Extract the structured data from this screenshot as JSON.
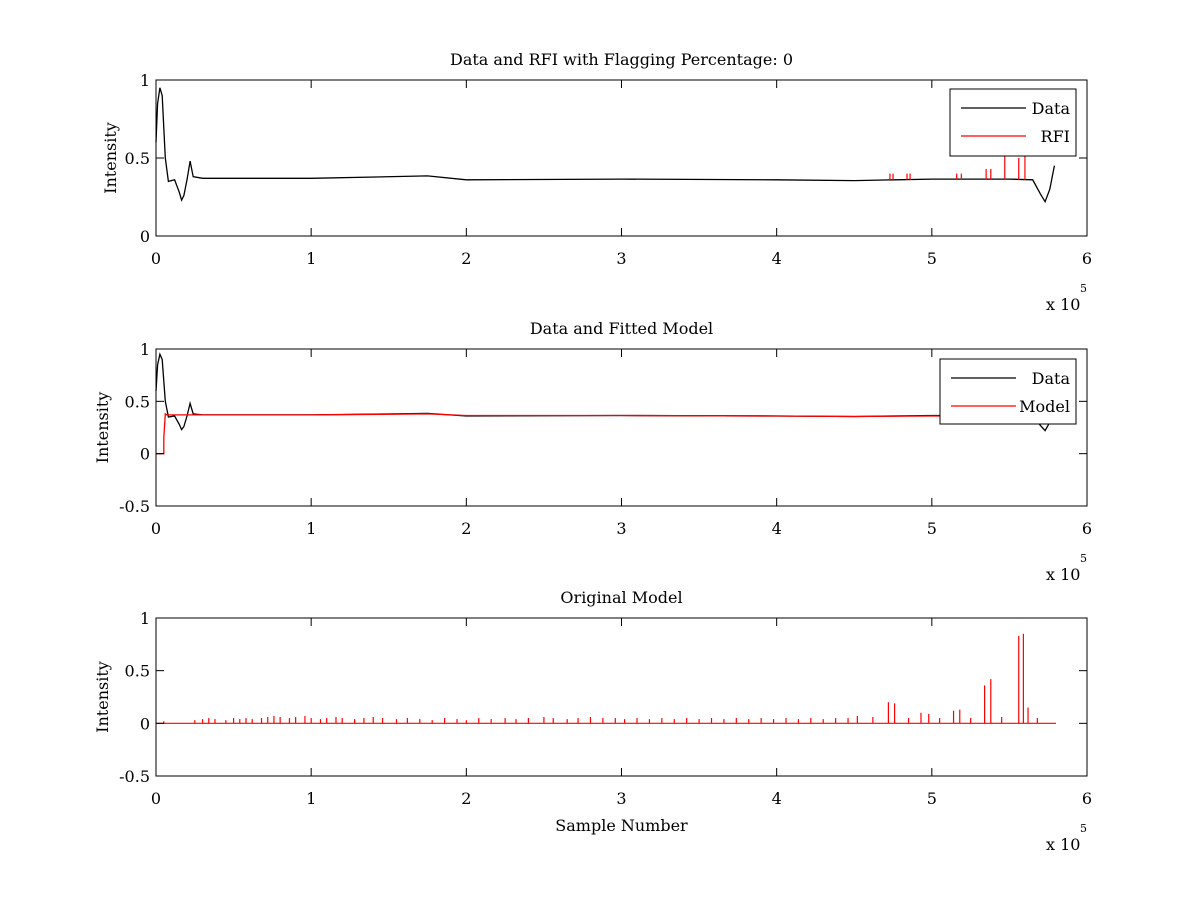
{
  "chart_data": [
    {
      "type": "line",
      "title": "Data and RFI with Flagging Percentage: 0",
      "xlabel": "",
      "ylabel": "Intensity",
      "xlim": [
        0,
        600000
      ],
      "ylim": [
        0,
        1
      ],
      "x_ticks": [
        0,
        100000,
        200000,
        300000,
        400000,
        500000,
        600000
      ],
      "x_tick_labels": [
        "0",
        "1",
        "2",
        "3",
        "4",
        "5",
        "6"
      ],
      "y_ticks": [
        0,
        0.5,
        1
      ],
      "y_tick_labels": [
        "0",
        "0.5",
        "1"
      ],
      "x_multiplier": {
        "base": "x 10",
        "exp": "5"
      },
      "grid": false,
      "legend_position": "top-right",
      "legend": [
        "Data",
        "RFI"
      ],
      "series": [
        {
          "name": "Data",
          "color": "#000000",
          "x": [
            0,
            1000,
            2500,
            4000,
            6000,
            8000,
            12000,
            15000,
            16500,
            18000,
            20000,
            22000,
            24000,
            30000,
            100000,
            175000,
            200000,
            300000,
            400000,
            450000,
            500000,
            550000,
            565000,
            570000,
            573000,
            576000,
            579000
          ],
          "values": [
            0.6,
            0.85,
            0.95,
            0.9,
            0.5,
            0.35,
            0.36,
            0.28,
            0.23,
            0.26,
            0.36,
            0.48,
            0.38,
            0.37,
            0.37,
            0.385,
            0.36,
            0.365,
            0.36,
            0.355,
            0.365,
            0.365,
            0.36,
            0.27,
            0.22,
            0.3,
            0.45
          ]
        },
        {
          "name": "RFI",
          "color": "#ff0000",
          "spikes": [
            [
              473000,
              0.4
            ],
            [
              475000,
              0.4
            ],
            [
              484000,
              0.4
            ],
            [
              486000,
              0.4
            ],
            [
              516000,
              0.4
            ],
            [
              519000,
              0.4
            ],
            [
              535000,
              0.43
            ],
            [
              538000,
              0.43
            ],
            [
              547000,
              0.52
            ],
            [
              556000,
              0.5
            ],
            [
              560000,
              0.52
            ]
          ]
        }
      ]
    },
    {
      "type": "line",
      "title": "Data and Fitted Model",
      "xlabel": "",
      "ylabel": "Intensity",
      "xlim": [
        0,
        600000
      ],
      "ylim": [
        -0.5,
        1
      ],
      "x_ticks": [
        0,
        100000,
        200000,
        300000,
        400000,
        500000,
        600000
      ],
      "x_tick_labels": [
        "0",
        "1",
        "2",
        "3",
        "4",
        "5",
        "6"
      ],
      "y_ticks": [
        -0.5,
        0,
        0.5,
        1
      ],
      "y_tick_labels": [
        "-0.5",
        "0",
        "0.5",
        "1"
      ],
      "x_multiplier": {
        "base": "x 10",
        "exp": "5"
      },
      "grid": false,
      "legend_position": "top-right",
      "legend": [
        "Data",
        "Model"
      ],
      "series": [
        {
          "name": "Data",
          "color": "#000000",
          "x": [
            0,
            1000,
            2500,
            4000,
            6000,
            8000,
            12000,
            15000,
            16500,
            18000,
            20000,
            22000,
            24000,
            30000,
            100000,
            175000,
            200000,
            300000,
            400000,
            450000,
            500000,
            550000,
            565000,
            570000,
            573000,
            576000,
            579000
          ],
          "values": [
            0.6,
            0.85,
            0.95,
            0.9,
            0.5,
            0.35,
            0.36,
            0.28,
            0.23,
            0.26,
            0.36,
            0.48,
            0.38,
            0.37,
            0.37,
            0.385,
            0.36,
            0.365,
            0.36,
            0.355,
            0.365,
            0.365,
            0.36,
            0.27,
            0.22,
            0.3,
            0.45
          ]
        },
        {
          "name": "Model",
          "color": "#ff0000",
          "x": [
            0,
            5000,
            5000,
            6000,
            7000,
            100000,
            175000,
            200000,
            300000,
            400000,
            450000,
            500000,
            550000,
            560000
          ],
          "values": [
            0,
            0,
            0.15,
            0.38,
            0.37,
            0.37,
            0.38,
            0.365,
            0.365,
            0.36,
            0.355,
            0.36,
            0.36,
            0.36
          ]
        }
      ]
    },
    {
      "type": "line",
      "title": "Original Model",
      "xlabel": "Sample Number",
      "ylabel": "Intensity",
      "xlim": [
        0,
        600000
      ],
      "ylim": [
        -0.5,
        1
      ],
      "x_ticks": [
        0,
        100000,
        200000,
        300000,
        400000,
        500000,
        600000
      ],
      "x_tick_labels": [
        "0",
        "1",
        "2",
        "3",
        "4",
        "5",
        "6"
      ],
      "y_ticks": [
        -0.5,
        0,
        0.5,
        1
      ],
      "y_tick_labels": [
        "-0.5",
        "0",
        "0.5",
        "1"
      ],
      "x_multiplier": {
        "base": "x 10",
        "exp": "5"
      },
      "grid": false,
      "series": [
        {
          "name": "Model",
          "color": "#ff0000",
          "baseline": 0,
          "x_end": 580000,
          "spikes": [
            [
              5000,
              0.02
            ],
            [
              25000,
              0.03
            ],
            [
              30000,
              0.04
            ],
            [
              34000,
              0.05
            ],
            [
              38000,
              0.04
            ],
            [
              45000,
              0.03
            ],
            [
              50000,
              0.05
            ],
            [
              54000,
              0.04
            ],
            [
              58000,
              0.05
            ],
            [
              62000,
              0.04
            ],
            [
              68000,
              0.05
            ],
            [
              72000,
              0.06
            ],
            [
              76000,
              0.07
            ],
            [
              80000,
              0.06
            ],
            [
              86000,
              0.05
            ],
            [
              90000,
              0.06
            ],
            [
              96000,
              0.07
            ],
            [
              100000,
              0.05
            ],
            [
              106000,
              0.04
            ],
            [
              110000,
              0.05
            ],
            [
              116000,
              0.06
            ],
            [
              120000,
              0.05
            ],
            [
              128000,
              0.04
            ],
            [
              134000,
              0.05
            ],
            [
              140000,
              0.06
            ],
            [
              146000,
              0.05
            ],
            [
              155000,
              0.04
            ],
            [
              162000,
              0.05
            ],
            [
              170000,
              0.04
            ],
            [
              178000,
              0.03
            ],
            [
              186000,
              0.05
            ],
            [
              194000,
              0.04
            ],
            [
              200000,
              0.03
            ],
            [
              208000,
              0.05
            ],
            [
              216000,
              0.04
            ],
            [
              225000,
              0.05
            ],
            [
              232000,
              0.04
            ],
            [
              240000,
              0.05
            ],
            [
              250000,
              0.06
            ],
            [
              256000,
              0.05
            ],
            [
              265000,
              0.04
            ],
            [
              272000,
              0.05
            ],
            [
              280000,
              0.06
            ],
            [
              288000,
              0.05
            ],
            [
              296000,
              0.05
            ],
            [
              302000,
              0.04
            ],
            [
              310000,
              0.05
            ],
            [
              318000,
              0.04
            ],
            [
              326000,
              0.05
            ],
            [
              334000,
              0.04
            ],
            [
              342000,
              0.05
            ],
            [
              350000,
              0.04
            ],
            [
              358000,
              0.05
            ],
            [
              366000,
              0.04
            ],
            [
              374000,
              0.05
            ],
            [
              382000,
              0.04
            ],
            [
              390000,
              0.05
            ],
            [
              398000,
              0.04
            ],
            [
              406000,
              0.05
            ],
            [
              414000,
              0.04
            ],
            [
              422000,
              0.05
            ],
            [
              430000,
              0.04
            ],
            [
              438000,
              0.05
            ],
            [
              446000,
              0.05
            ],
            [
              452000,
              0.07
            ],
            [
              462000,
              0.06
            ],
            [
              472000,
              0.2
            ],
            [
              476000,
              0.19
            ],
            [
              485000,
              0.05
            ],
            [
              493000,
              0.1
            ],
            [
              498000,
              0.09
            ],
            [
              505000,
              0.05
            ],
            [
              514000,
              0.12
            ],
            [
              518000,
              0.13
            ],
            [
              525000,
              0.05
            ],
            [
              534000,
              0.36
            ],
            [
              538000,
              0.42
            ],
            [
              545000,
              0.06
            ],
            [
              556000,
              0.83
            ],
            [
              559000,
              0.85
            ],
            [
              562000,
              0.15
            ],
            [
              568000,
              0.05
            ]
          ]
        }
      ]
    }
  ]
}
